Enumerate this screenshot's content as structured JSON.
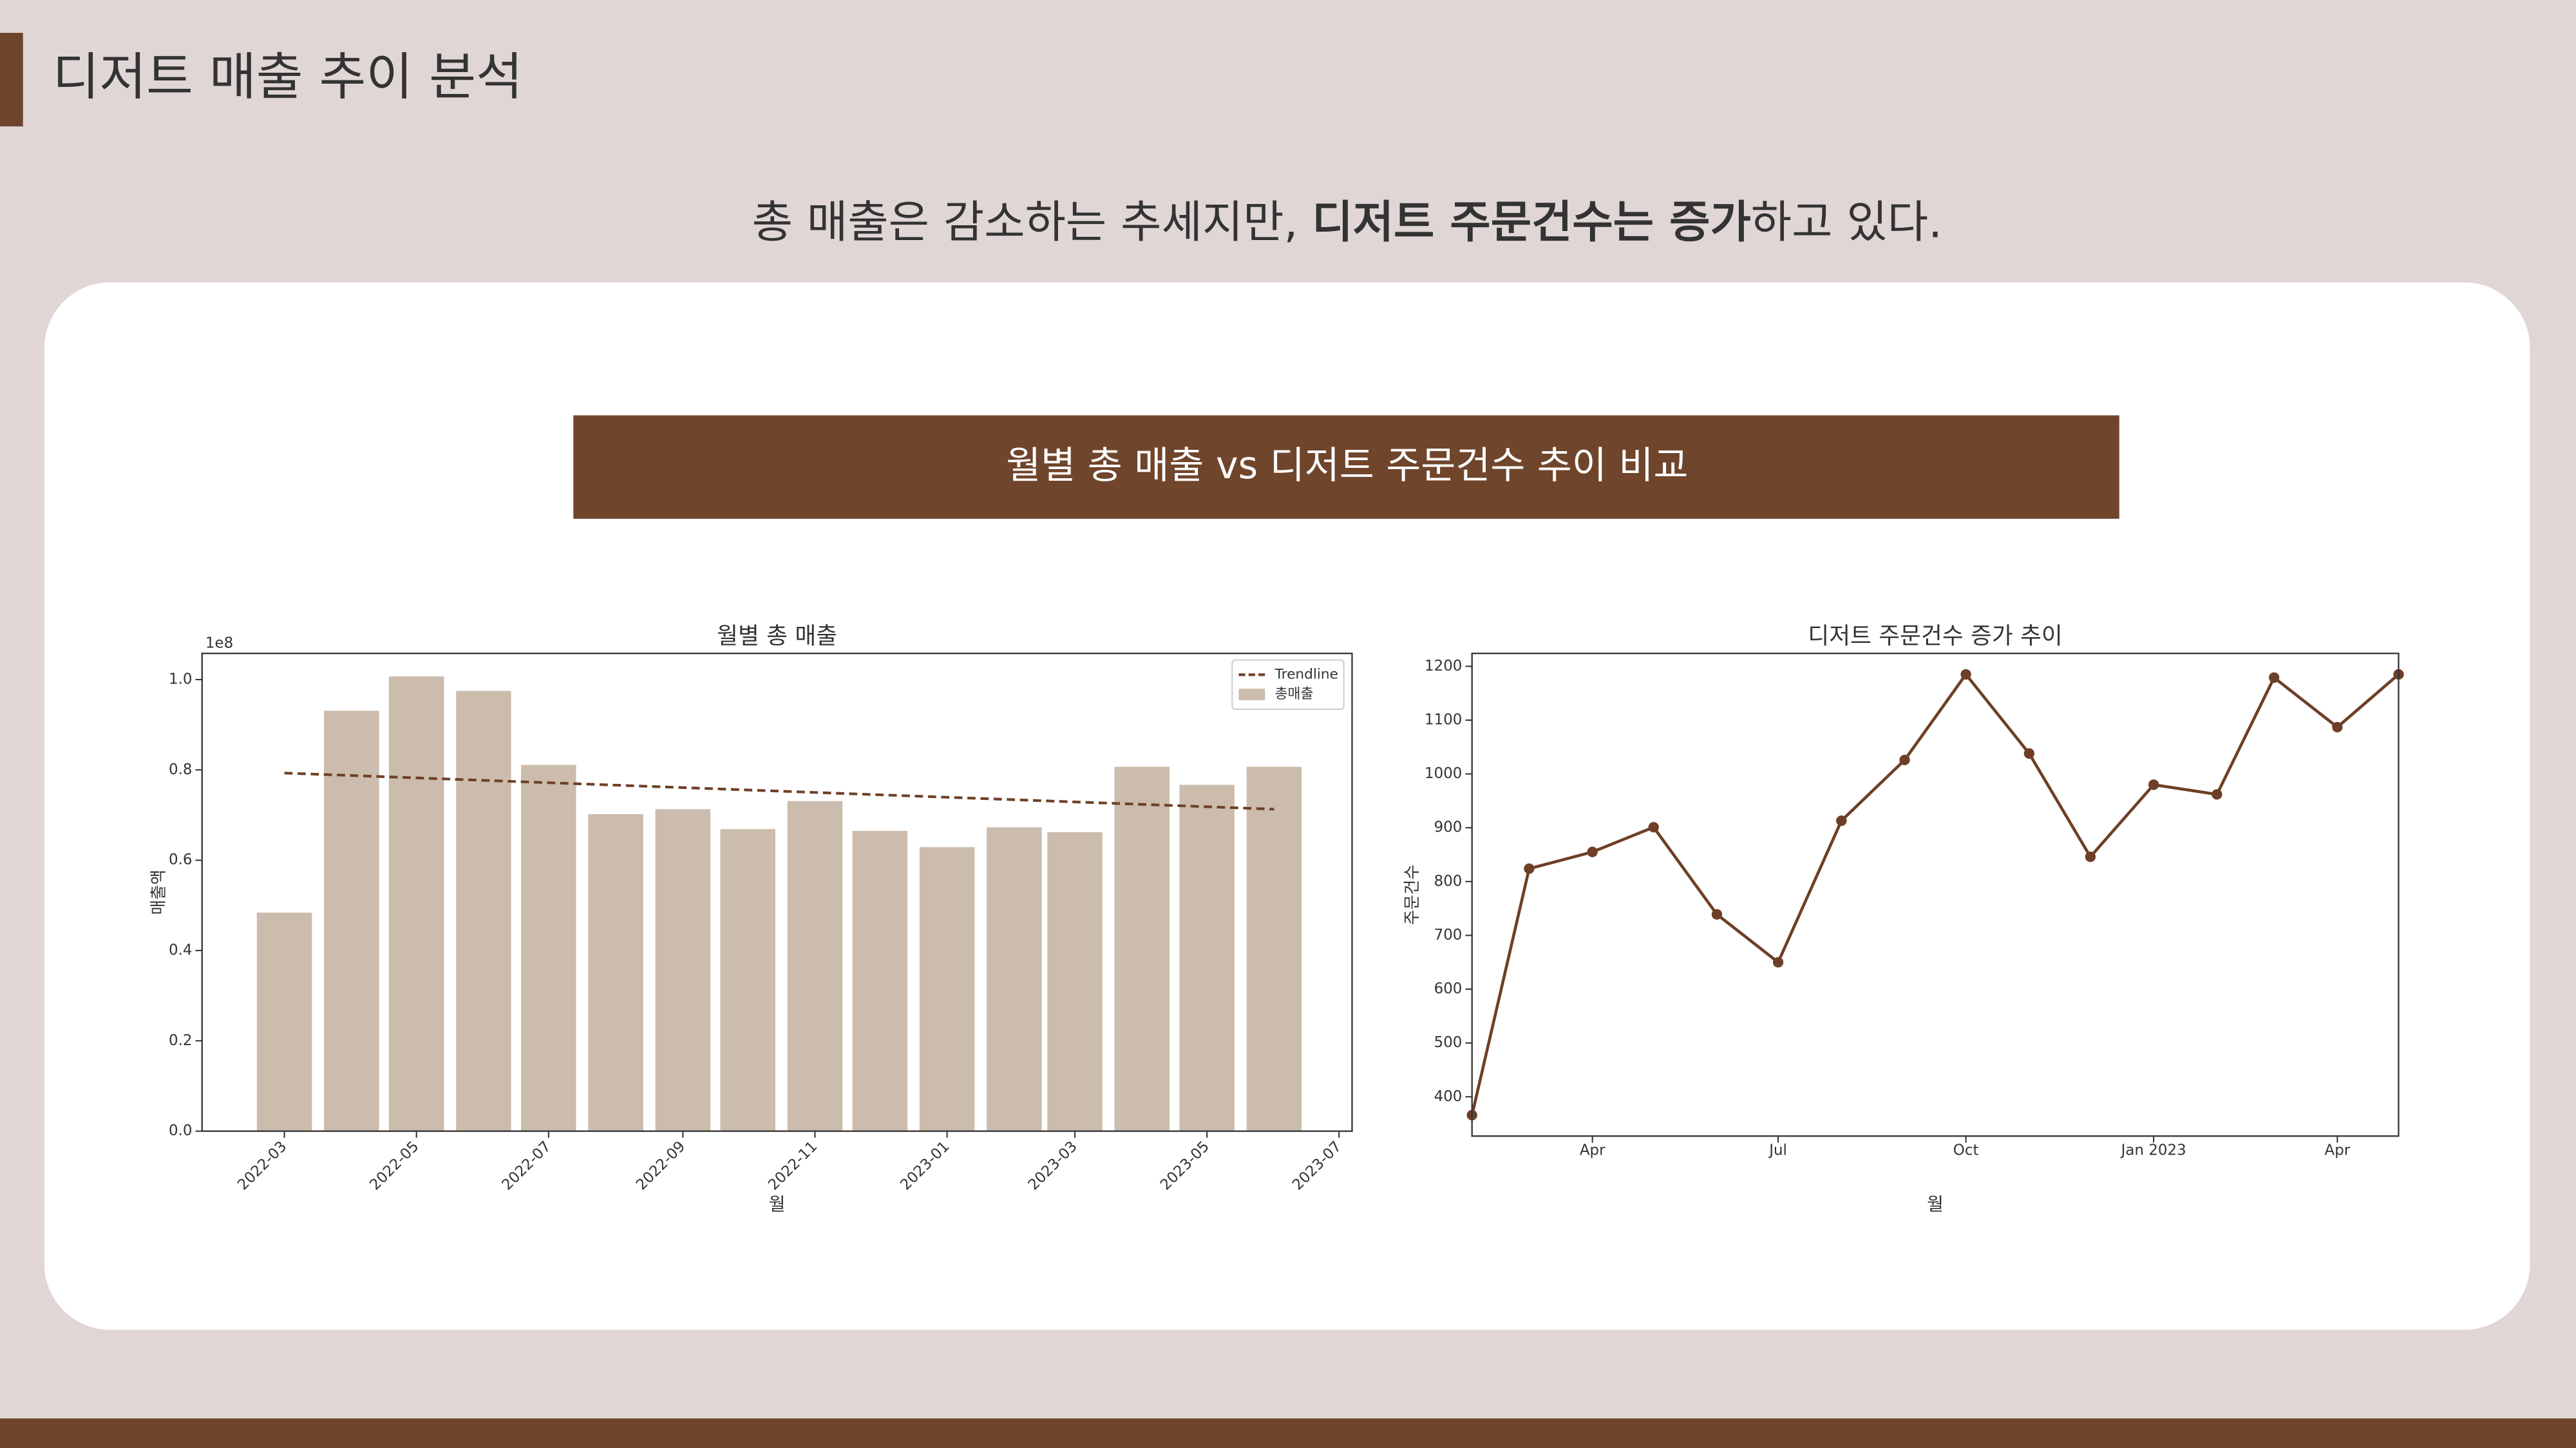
{
  "slide": {
    "title": "디저트 매출 추이 분석",
    "subtitle": [
      {
        "text": "총 매출은 감소하는 추세지만, ",
        "bold": false
      },
      {
        "text": "디저트 주문건수는 증가",
        "bold": true
      },
      {
        "text": "하고 있다.",
        "bold": false
      }
    ],
    "banner": "월별 총 매출 vs 디저트 주문건수 추이 비교"
  },
  "chart_data": [
    {
      "type": "bar",
      "title": "월별 총 매출",
      "xlabel": "월",
      "ylabel": "매출액",
      "offset_label": "1e8",
      "x": [
        "2022-03",
        "2022-04",
        "2022-05",
        "2022-06",
        "2022-07",
        "2022-08",
        "2022-09",
        "2022-10",
        "2022-11",
        "2022-12",
        "2023-01",
        "2023-02",
        "2023-03",
        "2023-04",
        "2023-05",
        "2023-06"
      ],
      "series": [
        {
          "name": "총매출",
          "color": "#cbbcad",
          "values": [
            0.484,
            0.931,
            1.007,
            0.975,
            0.811,
            0.702,
            0.713,
            0.669,
            0.731,
            0.665,
            0.629,
            0.673,
            0.662,
            0.807,
            0.767,
            0.807
          ]
        }
      ],
      "trendline": {
        "name": "Trendline",
        "color": "#6e3f26",
        "style": "dashed",
        "x": [
          "2022-03",
          "2023-06"
        ],
        "values": [
          0.793,
          0.713
        ]
      },
      "xlim": [
        "2022-01-22",
        "2023-07-07"
      ],
      "ylim": [
        0,
        1.058
      ],
      "xticks": [
        "2022-03",
        "2022-05",
        "2022-07",
        "2022-09",
        "2022-11",
        "2023-01",
        "2023-03",
        "2023-05",
        "2023-07"
      ],
      "xtick_rotation": 45,
      "yticks": [
        {
          "value": 0,
          "label": "0.0"
        },
        {
          "value": 0.2,
          "label": "0.2"
        },
        {
          "value": 0.4,
          "label": "0.4"
        },
        {
          "value": 0.6,
          "label": "0.6"
        },
        {
          "value": 0.8,
          "label": "0.8"
        },
        {
          "value": 1,
          "label": "1.0"
        }
      ],
      "legend": "upper right"
    },
    {
      "type": "line",
      "title": "디저트 주문건수 증가 추이",
      "xlabel": "월",
      "ylabel": "주문건수",
      "x": [
        "2022-02",
        "2022-03",
        "2022-04",
        "2022-05",
        "2022-06",
        "2022-07",
        "2022-08",
        "2022-09",
        "2022-10",
        "2022-11",
        "2022-12",
        "2023-01",
        "2023-02",
        "2023-03",
        "2023-04",
        "2023-05"
      ],
      "series": [
        {
          "name": "주문건수",
          "color": "#6e3f26",
          "values": [
            366,
            824,
            855,
            901,
            739,
            650,
            913,
            1026,
            1185,
            1038,
            846,
            980,
            962,
            1179,
            1087,
            1185
          ]
        }
      ],
      "xlim": [
        "2022-02",
        "2023-05"
      ],
      "ylim": [
        327,
        1224
      ],
      "xticks": [
        {
          "value": "2022-04",
          "label": "Apr"
        },
        {
          "value": "2022-07",
          "label": "Jul"
        },
        {
          "value": "2022-10",
          "label": "Oct"
        },
        {
          "value": "2023-01",
          "label": "Jan 2023"
        },
        {
          "value": "2023-04",
          "label": "Apr"
        }
      ],
      "yticks": [
        400,
        500,
        600,
        700,
        800,
        900,
        1000,
        1100,
        1200
      ]
    }
  ]
}
